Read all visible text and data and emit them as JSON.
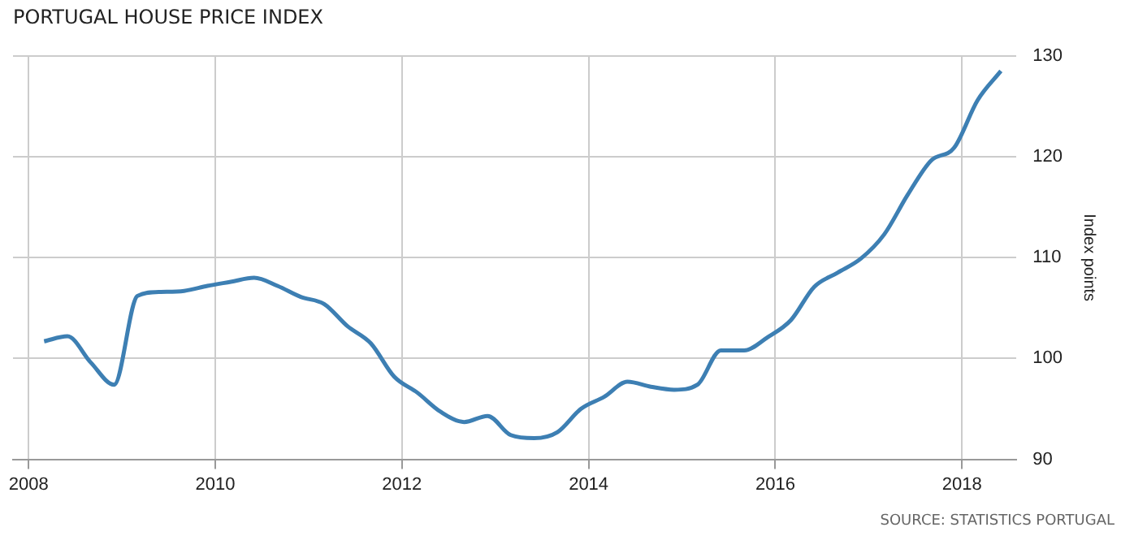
{
  "chart_data": {
    "type": "line",
    "title": "PORTUGAL HOUSE PRICE INDEX",
    "ylabel": "Index points",
    "annotations": [
      "SOURCE: STATISTICS PORTUGAL"
    ],
    "x": [
      "2008-03",
      "2008-06",
      "2008-09",
      "2008-12",
      "2009-03",
      "2009-06",
      "2009-09",
      "2009-12",
      "2010-03",
      "2010-06",
      "2010-09",
      "2010-12",
      "2011-03",
      "2011-06",
      "2011-09",
      "2011-12",
      "2012-03",
      "2012-06",
      "2012-09",
      "2012-12",
      "2013-03",
      "2013-06",
      "2013-09",
      "2013-12",
      "2014-03",
      "2014-06",
      "2014-09",
      "2014-12",
      "2015-03",
      "2015-06",
      "2015-09",
      "2015-12",
      "2016-03",
      "2016-06",
      "2016-09",
      "2016-12",
      "2017-03",
      "2017-06",
      "2017-09",
      "2017-12",
      "2018-03",
      "2018-06"
    ],
    "series": [
      {
        "color": "#3d7fb3",
        "values": [
          101.7,
          102.2,
          99.6,
          97.4,
          106.2,
          106.6,
          106.7,
          107.2,
          107.6,
          108.0,
          107.2,
          106.1,
          105.4,
          103.2,
          101.5,
          98.2,
          96.6,
          94.7,
          93.7,
          94.3,
          92.4,
          92.1,
          92.7,
          95.0,
          96.2,
          97.7,
          97.2,
          96.9,
          97.4,
          100.8,
          100.8,
          102.1,
          103.8,
          107.1,
          108.5,
          109.9,
          112.3,
          116.2,
          119.6,
          120.9,
          125.6,
          128.5
        ]
      }
    ],
    "xlim": [
      "2007-11",
      "2018-08"
    ],
    "xticks": [
      "2008",
      "2010",
      "2012",
      "2014",
      "2016",
      "2018"
    ],
    "ylim": [
      90,
      130
    ],
    "yticks": [
      90,
      100,
      110,
      120,
      130
    ],
    "grid": true,
    "legend": false,
    "marker": "none",
    "line_style": "solid"
  }
}
